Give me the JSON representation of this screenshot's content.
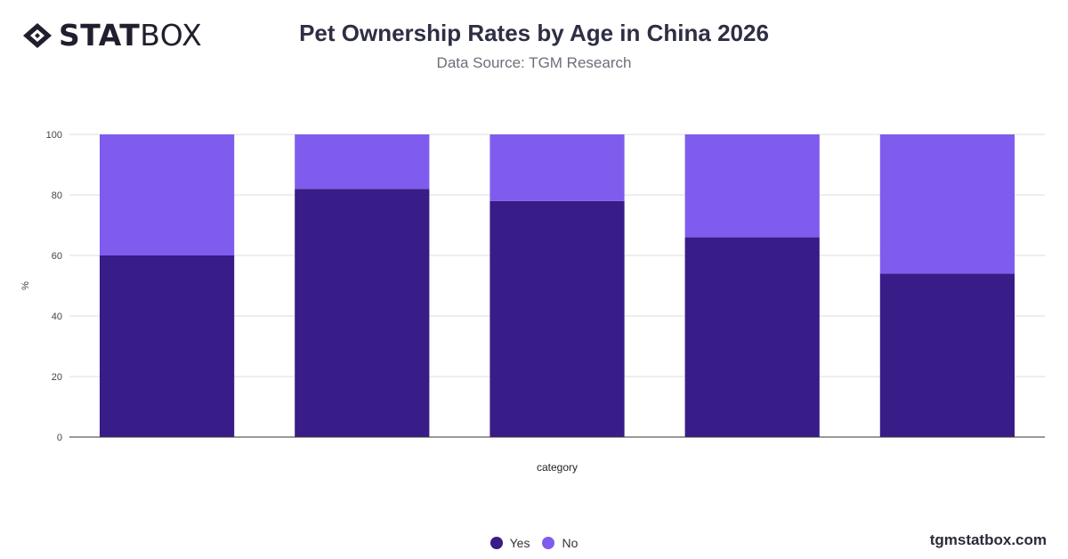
{
  "brand": {
    "name_bold": "STAT",
    "name_light": "BOX",
    "footer": "tgmstatbox.com"
  },
  "header": {
    "title": "Pet Ownership Rates by Age in China 2026",
    "subtitle": "Data Source: TGM Research"
  },
  "chart_data": {
    "type": "bar",
    "stacked": true,
    "categories": [
      "",
      "",
      "",
      "",
      ""
    ],
    "series": [
      {
        "name": "Yes",
        "color": "#381c87",
        "values": [
          60,
          82,
          78,
          66,
          54
        ]
      },
      {
        "name": "No",
        "color": "#7f5ced",
        "values": [
          40,
          18,
          22,
          34,
          46
        ]
      }
    ],
    "xlabel": "category",
    "ylabel": "%",
    "ylim": [
      0,
      100
    ],
    "yticks": [
      0,
      20,
      40,
      60,
      80,
      100
    ],
    "grid": true,
    "legend_position": "bottom"
  }
}
